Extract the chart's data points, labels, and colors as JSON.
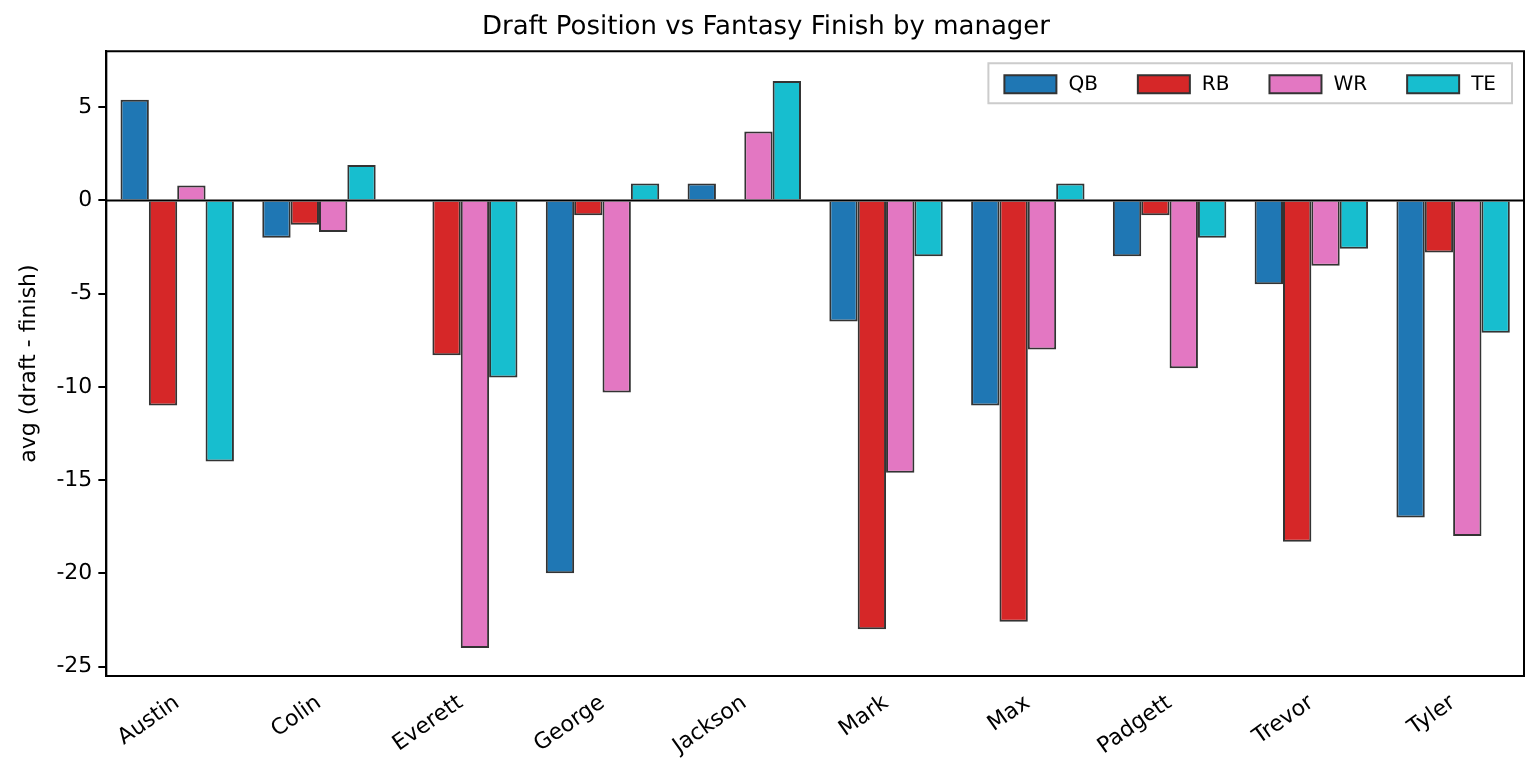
{
  "chart_data": {
    "type": "bar",
    "title": "Draft Position vs Fantasy Finish by manager",
    "ylabel": "avg (draft - finish)",
    "categories": [
      "Austin",
      "Colin",
      "Everett",
      "George",
      "Jackson",
      "Mark",
      "Max",
      "Padgett",
      "Trevor",
      "Tyler"
    ],
    "series": [
      {
        "name": "QB",
        "color": "#1f77b4",
        "values": [
          5.4,
          -2,
          0,
          -20,
          0.9,
          -6.5,
          -11,
          -3,
          -4.5,
          -17
        ]
      },
      {
        "name": "RB",
        "color": "#d62728",
        "values": [
          -11,
          -1.3,
          -8.3,
          -0.8,
          0,
          -23,
          -22.6,
          -0.8,
          -18.3,
          -2.8
        ]
      },
      {
        "name": "WR",
        "color": "#e377c2",
        "values": [
          0.8,
          -1.7,
          -24,
          -10.3,
          3.7,
          -14.6,
          -8,
          -9,
          -3.5,
          -18
        ]
      },
      {
        "name": "TE",
        "color": "#17becf",
        "values": [
          -14,
          1.9,
          -9.5,
          0.9,
          6.4,
          -3,
          0.9,
          -2,
          -2.6,
          -7.1
        ]
      }
    ],
    "ylim": [
      -25.5,
      8
    ],
    "yticks": [
      -25,
      -20,
      -15,
      -10,
      -5,
      0,
      5
    ],
    "ref_lines": [
      {
        "axis": "y",
        "value": 0,
        "color": "#000000"
      }
    ],
    "grid": false,
    "legend": "top right"
  }
}
